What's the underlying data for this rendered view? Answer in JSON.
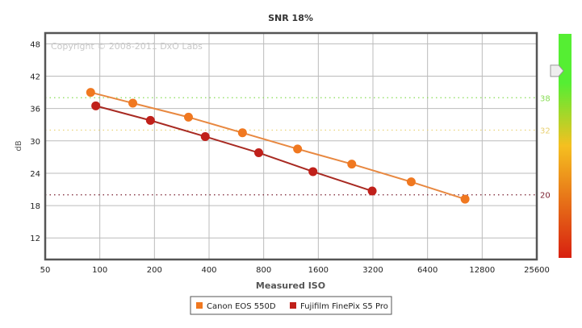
{
  "chart_data": {
    "type": "line",
    "title": "SNR 18%",
    "xlabel": "Measured ISO",
    "ylabel": "dB",
    "x_scale": "log2",
    "xlim": [
      50,
      25600
    ],
    "ylim": [
      8,
      50
    ],
    "x_ticks": [
      50,
      100,
      200,
      400,
      800,
      1600,
      3200,
      6400,
      12800,
      25600
    ],
    "y_ticks": [
      12,
      18,
      24,
      30,
      36,
      42,
      48
    ],
    "grid": true,
    "watermark": "Copyright © 2008-2011 DxO Labs",
    "legend_position": "bottom",
    "reference_lines": [
      {
        "value": 38,
        "label": "38",
        "color": "#88dd55"
      },
      {
        "value": 32,
        "label": "32",
        "color": "#e8d070"
      },
      {
        "value": 20,
        "label": "20",
        "color": "#7a2030"
      }
    ],
    "series": [
      {
        "name": "Canon EOS 550D",
        "color": "#f07820",
        "line_color": "#e88840",
        "x": [
          89,
          152,
          308,
          611,
          1230,
          2446,
          5200,
          10300
        ],
        "y": [
          39.0,
          37.0,
          34.4,
          31.5,
          28.5,
          25.7,
          22.4,
          19.2
        ]
      },
      {
        "name": "Fujifilm FinePix S5 Pro",
        "color": "#c0201a",
        "line_color": "#a82a22",
        "x": [
          95,
          190,
          381,
          751,
          1495,
          3170
        ],
        "y": [
          36.5,
          33.8,
          30.8,
          27.8,
          24.3,
          20.7
        ]
      }
    ],
    "color_scale": {
      "colors": [
        "#55ee33",
        "#f5c020",
        "#d82010"
      ],
      "slider_value": 43
    }
  }
}
